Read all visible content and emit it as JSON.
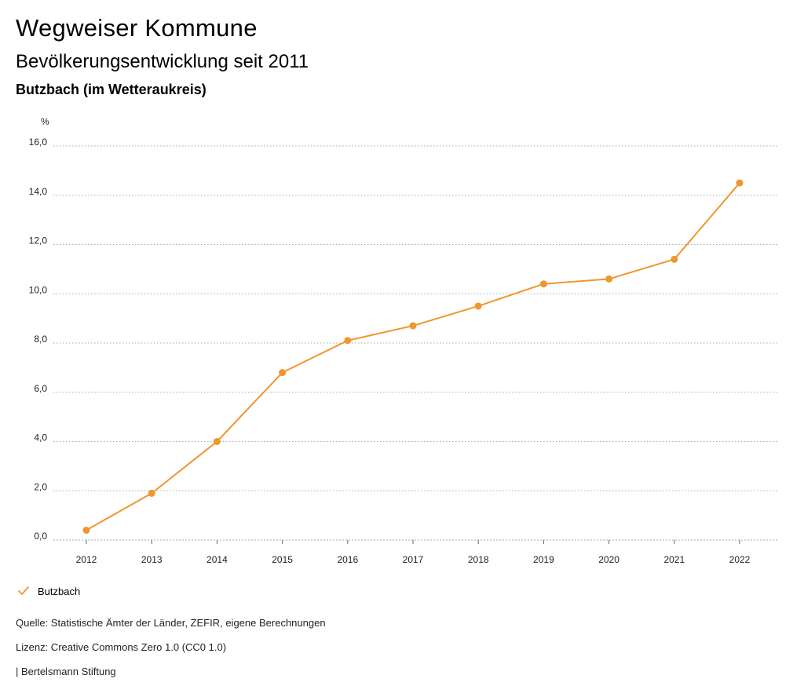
{
  "header": {
    "title": "Wegweiser Kommune",
    "subtitle": "Bevölkerungsentwicklung seit 2011",
    "region": "Butzbach (im Wetteraukreis)"
  },
  "chart_data": {
    "type": "line",
    "title": "Bevölkerungsentwicklung seit 2011",
    "ylabel": "%",
    "xlabel": "",
    "ylim": [
      0,
      16
    ],
    "yticks": [
      "0,0",
      "2,0",
      "4,0",
      "6,0",
      "8,0",
      "10,0",
      "12,0",
      "14,0",
      "16,0"
    ],
    "ytick_values": [
      0,
      2,
      4,
      6,
      8,
      10,
      12,
      14,
      16
    ],
    "categories": [
      "2012",
      "2013",
      "2014",
      "2015",
      "2016",
      "2017",
      "2018",
      "2019",
      "2020",
      "2021",
      "2022"
    ],
    "series": [
      {
        "name": "Butzbach",
        "values": [
          0.4,
          1.9,
          4.0,
          6.8,
          8.1,
          8.7,
          9.5,
          10.4,
          10.6,
          11.4,
          14.5
        ]
      }
    ],
    "grid": true,
    "legend": "bottom-left"
  },
  "legend": {
    "label": "Butzbach"
  },
  "footer": {
    "source": "Quelle: Statistische Ämter der Länder, ZEFIR, eigene Berechnungen",
    "license": "Lizenz: Creative Commons Zero 1.0 (CC0 1.0)",
    "publisher": "| Bertelsmann Stiftung"
  },
  "colors": {
    "series": "#f0962e",
    "grid": "#aaaaaa"
  }
}
